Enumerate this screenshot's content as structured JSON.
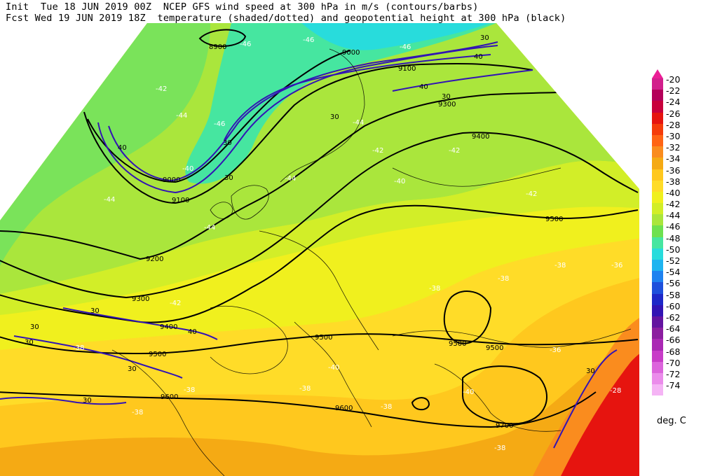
{
  "header": {
    "line1": "Init  Tue 18 JUN 2019 00Z  NCEP GFS wind speed at 300 hPa in m/s (contours/barbs)",
    "line2": "Fcst Wed 19 JUN 2019 18Z  temperature (shaded/dotted) and geopotential height at 300 hPa (black)"
  },
  "legend": {
    "labels": [
      "-20",
      "-22",
      "-24",
      "-26",
      "-28",
      "-30",
      "-32",
      "-34",
      "-36",
      "-38",
      "-40",
      "-42",
      "-44",
      "-46",
      "-48",
      "-50",
      "-52",
      "-54",
      "-56",
      "-58",
      "-60",
      "-62",
      "-64",
      "-66",
      "-68",
      "-70",
      "-72",
      "-74"
    ],
    "colors": [
      "#d21f8c",
      "#b4005a",
      "#c8003c",
      "#e6140f",
      "#f53c0a",
      "#ff6414",
      "#fa8c1e",
      "#f5aa14",
      "#ffc81e",
      "#ffdc28",
      "#f0f01e",
      "#d2ee28",
      "#aae63c",
      "#6ee150",
      "#46e6a0",
      "#28dcdc",
      "#1eb4f0",
      "#1e82f0",
      "#1e50dc",
      "#1e28c8",
      "#3214b4",
      "#6414a0",
      "#8c1ea0",
      "#aa28b4",
      "#c83cc8",
      "#dc64dc",
      "#eb8ceb",
      "#f5b4f5"
    ],
    "unit": "deg. C"
  },
  "map": {
    "colors": {
      "green_cold": "#7ae35a",
      "green": "#aae63c",
      "yellow_green": "#d2ee28",
      "yellow": "#f0f01e",
      "orange_light": "#ffc81e",
      "orange": "#f5aa14",
      "red": "#e6140f",
      "cyan": "#46e6a0",
      "sky": "#28dcdc",
      "jet": "#3214b4",
      "height": "#000000"
    },
    "height_labels": [
      "8900",
      "9000",
      "9100",
      "9000",
      "9100",
      "9200",
      "9300",
      "9300",
      "9400",
      "9400",
      "9500",
      "9500",
      "9500",
      "9500",
      "9500",
      "9600",
      "9600",
      "9700"
    ],
    "wind_labels": [
      "30",
      "30",
      "30",
      "40",
      "40",
      "40",
      "30",
      "30",
      "30",
      "30",
      "30",
      "30",
      "30",
      "40",
      "30"
    ],
    "temp_labels": [
      "-46",
      "-46",
      "-46",
      "-42",
      "-44",
      "-46",
      "-44",
      "-42",
      "-44",
      "-40",
      "-42",
      "-44",
      "-44",
      "-42",
      "-42",
      "-40",
      "-40",
      "-38",
      "-38",
      "-38",
      "-38",
      "-40",
      "-38",
      "-36",
      "-38",
      "-38",
      "-36",
      "-38",
      "-28",
      "-38"
    ]
  }
}
